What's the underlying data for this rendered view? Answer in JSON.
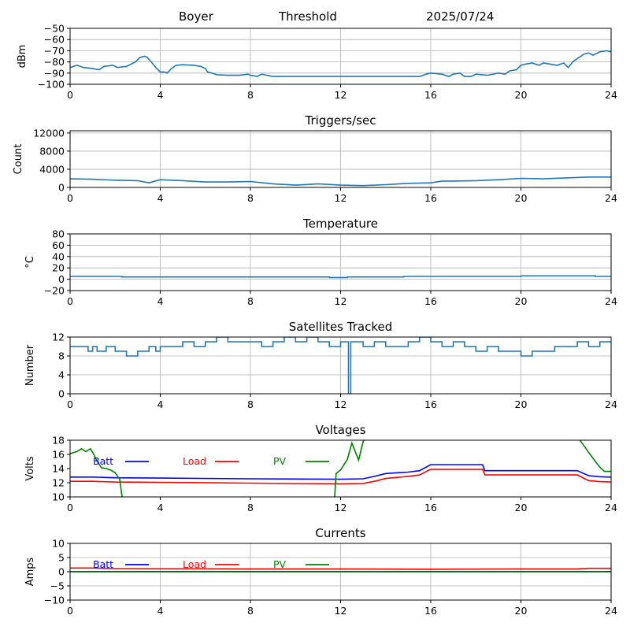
{
  "header": {
    "site": "Boyer",
    "mode": "Threshold",
    "date": "2025/07/24"
  },
  "colors": {
    "series": "#1f77b4",
    "batt": "#0000ff",
    "load": "#ff0000",
    "pv": "#008000",
    "grid": "#b0b0b0"
  },
  "chart_data": [
    {
      "id": "rssi",
      "type": "line",
      "title": "",
      "ylabel": "dBm",
      "xlim": [
        0,
        24
      ],
      "xticks": [
        0,
        4,
        8,
        12,
        16,
        20,
        24
      ],
      "ylim": [
        -100,
        -50
      ],
      "yticks": [
        -100,
        -90,
        -80,
        -70,
        -60,
        -50
      ],
      "grid": true,
      "series": [
        {
          "name": "",
          "color": "#1f77b4",
          "step": false,
          "x": [
            0,
            0.3,
            0.6,
            1.0,
            1.3,
            1.5,
            1.9,
            2.1,
            2.5,
            2.9,
            3.1,
            3.3,
            3.4,
            3.6,
            3.8,
            4.0,
            4.2,
            4.3,
            4.5,
            4.7,
            5.0,
            5.5,
            5.8,
            6.0,
            6.1,
            6.3,
            6.5,
            7.0,
            7.5,
            7.9,
            8.0,
            8.3,
            8.5,
            9,
            10,
            11,
            12,
            13,
            14,
            15.5,
            15.8,
            16.0,
            16.5,
            16.8,
            17.0,
            17.3,
            17.5,
            17.8,
            18.0,
            18.5,
            19.0,
            19.3,
            19.5,
            19.8,
            20.0,
            20.2,
            20.5,
            20.8,
            21.0,
            21.3,
            21.6,
            21.9,
            22.1,
            22.3,
            22.5,
            22.8,
            23.0,
            23.2,
            23.5,
            23.8,
            24
          ],
          "y": [
            -85,
            -83,
            -85,
            -86,
            -87,
            -84,
            -83,
            -85,
            -84,
            -80,
            -76,
            -75,
            -75.5,
            -80,
            -85,
            -89,
            -89,
            -90,
            -86,
            -83,
            -82.5,
            -83,
            -84,
            -86,
            -89,
            -90,
            -91.5,
            -92,
            -92,
            -91,
            -92,
            -93,
            -91,
            -93,
            -93,
            -93,
            -93,
            -93,
            -93,
            -93,
            -91,
            -90,
            -91,
            -93,
            -91,
            -90,
            -93,
            -93,
            -91,
            -92,
            -90,
            -91,
            -88,
            -87,
            -83,
            -82,
            -81,
            -83,
            -81,
            -82,
            -83,
            -81,
            -85,
            -80,
            -77,
            -73,
            -72,
            -74,
            -71,
            -70,
            -71
          ]
        }
      ],
      "legend": []
    },
    {
      "id": "triggers",
      "type": "line",
      "title": "Triggers/sec",
      "ylabel": "Count",
      "xlim": [
        0,
        24
      ],
      "xticks": [
        0,
        4,
        8,
        12,
        16,
        20,
        24
      ],
      "ylim": [
        0,
        12500
      ],
      "yticks": [
        0,
        4000,
        8000,
        12000
      ],
      "grid": true,
      "series": [
        {
          "name": "",
          "color": "#1f77b4",
          "step": false,
          "x": [
            0,
            1,
            2,
            3,
            3.5,
            4,
            5,
            6,
            7,
            8,
            9,
            10,
            11,
            12,
            13,
            14,
            15,
            16,
            16.5,
            17,
            18,
            19,
            20,
            21,
            22,
            23,
            24
          ],
          "y": [
            1900,
            1800,
            1600,
            1500,
            1000,
            1700,
            1500,
            1200,
            1200,
            1300,
            800,
            500,
            800,
            500,
            400,
            600,
            900,
            1000,
            1400,
            1400,
            1500,
            1700,
            2000,
            1900,
            2100,
            2300,
            2300
          ]
        }
      ],
      "legend": []
    },
    {
      "id": "temperature",
      "type": "line",
      "title": "Temperature",
      "ylabel": "°C",
      "xlim": [
        0,
        24
      ],
      "xticks": [
        0,
        4,
        8,
        12,
        16,
        20,
        24
      ],
      "ylim": [
        -20,
        80
      ],
      "yticks": [
        -20,
        0,
        20,
        40,
        60,
        80
      ],
      "grid": true,
      "series": [
        {
          "name": "",
          "color": "#1f77b4",
          "step": true,
          "x": [
            0,
            2.3,
            11.5,
            12.3,
            14.8,
            20.0,
            23.3,
            24
          ],
          "y": [
            5,
            4,
            3,
            4,
            5,
            6,
            5,
            5
          ]
        }
      ],
      "legend": []
    },
    {
      "id": "satellites",
      "type": "line",
      "title": "Satellites Tracked",
      "ylabel": "Number",
      "xlim": [
        0,
        24
      ],
      "xticks": [
        0,
        4,
        8,
        12,
        16,
        20,
        24
      ],
      "ylim": [
        0,
        12
      ],
      "yticks": [
        0,
        4,
        8,
        12
      ],
      "grid": true,
      "series": [
        {
          "name": "",
          "color": "#1f77b4",
          "step": true,
          "x": [
            0,
            0.5,
            0.8,
            1.0,
            1.2,
            1.6,
            2.0,
            2.5,
            3.0,
            3.5,
            3.8,
            4.0,
            4.5,
            5.0,
            5.5,
            6.0,
            6.5,
            7.0,
            8.0,
            8.5,
            9.0,
            9.5,
            10.0,
            10.5,
            11.0,
            11.5,
            12.0,
            12.35,
            12.45,
            12.7,
            13.0,
            13.5,
            14.0,
            14.5,
            15.0,
            15.5,
            16.0,
            16.5,
            17.0,
            17.5,
            18.0,
            18.5,
            19.0,
            19.5,
            20.0,
            20.5,
            21.0,
            21.5,
            22.0,
            22.5,
            23.0,
            23.5,
            24
          ],
          "y": [
            10,
            10,
            9,
            10,
            9,
            10,
            9,
            8,
            9,
            10,
            9,
            10,
            10,
            11,
            10,
            11,
            12,
            11,
            11,
            10,
            11,
            12,
            11,
            12,
            11,
            10,
            11,
            0,
            11,
            11,
            10,
            11,
            10,
            10,
            11,
            12,
            11,
            10,
            11,
            10,
            9,
            10,
            9,
            9,
            8,
            9,
            9,
            10,
            10,
            11,
            10,
            11,
            11
          ]
        }
      ],
      "legend": []
    },
    {
      "id": "voltages",
      "type": "line",
      "title": "Voltages",
      "ylabel": "Volts",
      "xlim": [
        0,
        24
      ],
      "xticks": [
        0,
        4,
        8,
        12,
        16,
        20,
        24
      ],
      "ylim": [
        10,
        18
      ],
      "yticks": [
        10,
        12,
        14,
        16,
        18
      ],
      "grid": false,
      "series": [
        {
          "name": "Batt",
          "color": "#0000ff",
          "step": false,
          "x": [
            0,
            1,
            2,
            4,
            8,
            12,
            13,
            13.5,
            14,
            15,
            15.5,
            16,
            18.3,
            18.4,
            22.5,
            23,
            23.5,
            24
          ],
          "y": [
            12.8,
            12.8,
            12.7,
            12.65,
            12.55,
            12.5,
            12.55,
            12.9,
            13.3,
            13.5,
            13.7,
            14.55,
            14.55,
            13.7,
            13.7,
            13.0,
            12.85,
            12.8
          ]
        },
        {
          "name": "Load",
          "color": "#ff0000",
          "step": false,
          "x": [
            0,
            1,
            2,
            4,
            8,
            12,
            13,
            13.5,
            14,
            15,
            15.5,
            16,
            18.3,
            18.4,
            22.5,
            23,
            23.5,
            24
          ],
          "y": [
            12.2,
            12.2,
            12.1,
            12.05,
            11.95,
            11.85,
            11.9,
            12.2,
            12.6,
            12.9,
            13.1,
            13.9,
            13.9,
            13.1,
            13.1,
            12.3,
            12.15,
            12.1
          ]
        },
        {
          "name": "PV",
          "color": "#008000",
          "step": false,
          "x": [
            0,
            0.3,
            0.5,
            0.7,
            0.9,
            1.05,
            1.2,
            1.4,
            1.6,
            1.8,
            2.0,
            2.2,
            2.3,
            2.4,
            11.7,
            11.8,
            12.0,
            12.3,
            12.5,
            12.8,
            13.0,
            13.1,
            13.2,
            22.5,
            22.8,
            23.0,
            23.3,
            23.5,
            23.7,
            24
          ],
          "y": [
            16.1,
            16.4,
            16.8,
            16.4,
            16.8,
            16.0,
            15.0,
            14.1,
            14.0,
            13.8,
            13.4,
            12.5,
            10.2,
            8.0,
            8.0,
            13.3,
            13.8,
            15.3,
            17.6,
            15.2,
            17.8,
            18.3,
            19.5,
            18.5,
            17.2,
            16.3,
            15.0,
            14.2,
            13.6,
            13.6
          ]
        }
      ],
      "legend": [
        "Batt",
        "Load",
        "PV"
      ]
    },
    {
      "id": "currents",
      "type": "line",
      "title": "Currents",
      "ylabel": "Amps",
      "xlim": [
        0,
        24
      ],
      "xticks": [
        0,
        4,
        8,
        12,
        16,
        20,
        24
      ],
      "ylim": [
        -10,
        10
      ],
      "yticks": [
        -10,
        -5,
        0,
        5,
        10
      ],
      "grid": true,
      "series": [
        {
          "name": "Batt",
          "color": "#0000ff",
          "step": false,
          "x": [
            0,
            24
          ],
          "y": [
            0.05,
            0.05
          ]
        },
        {
          "name": "Load",
          "color": "#ff0000",
          "step": false,
          "x": [
            0,
            1,
            2,
            8,
            12,
            16,
            20,
            22.5,
            23,
            24
          ],
          "y": [
            1.3,
            1.3,
            1.1,
            1.0,
            1.0,
            0.9,
            1.0,
            1.0,
            1.2,
            1.2
          ]
        },
        {
          "name": "PV",
          "color": "#008000",
          "step": false,
          "x": [
            0,
            24
          ],
          "y": [
            0,
            0
          ]
        }
      ],
      "legend": [
        "Batt",
        "Load",
        "PV"
      ]
    }
  ]
}
